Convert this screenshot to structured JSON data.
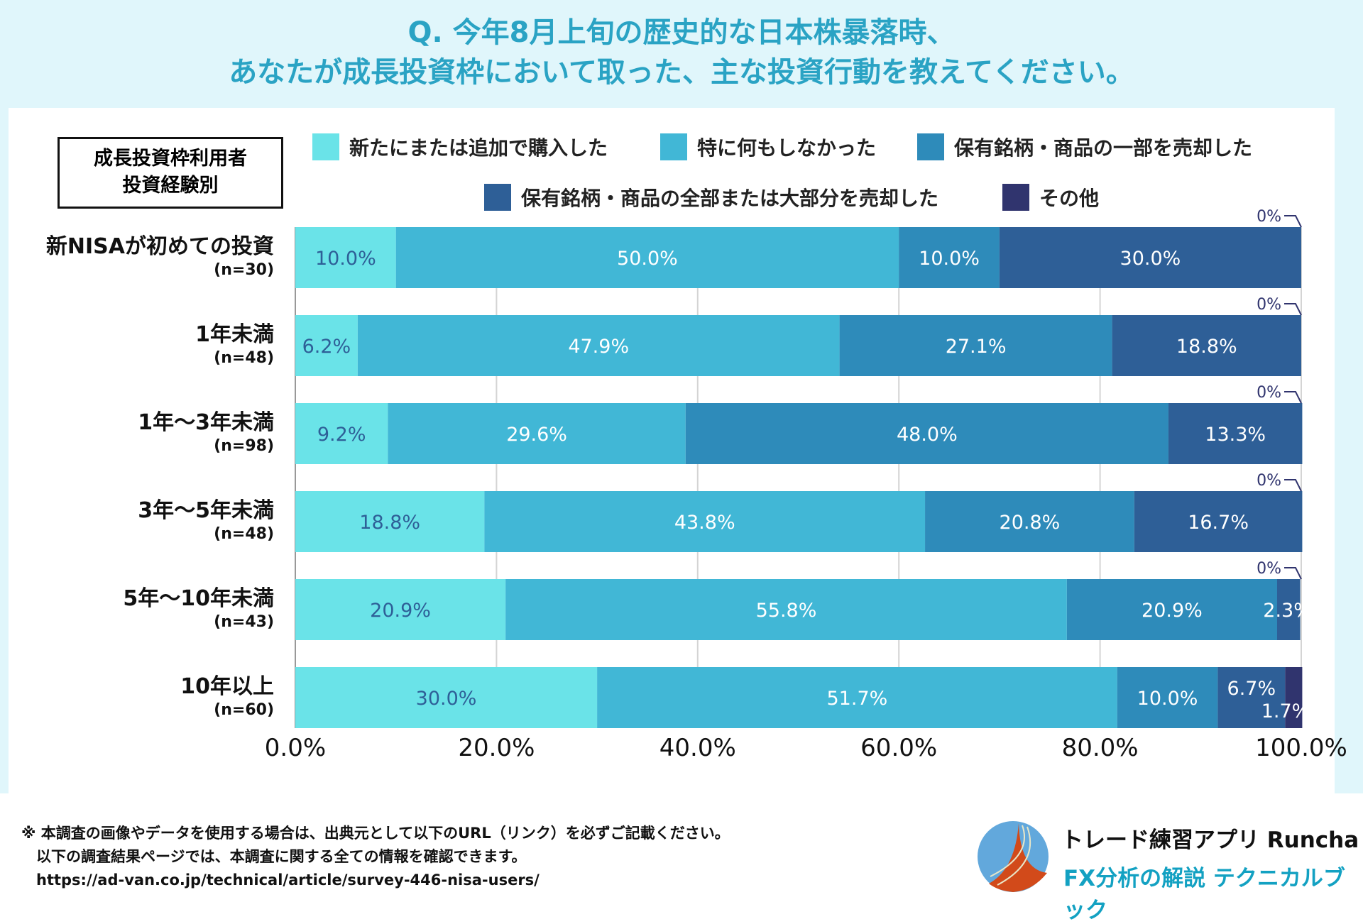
{
  "title_lines": [
    "Q. 今年8月上旬の歴史的な日本株暴落時、",
    "あなたが成長投資枠において取った、主な投資行動を教えてください。"
  ],
  "group_box": [
    "成長投資枠利用者",
    "投資経験別"
  ],
  "chart_data": {
    "type": "bar",
    "orientation": "horizontal-stacked-100",
    "categories": [
      {
        "label": "新NISAが初めての投資",
        "n": "(n=30)"
      },
      {
        "label": "1年未満",
        "n": "(n=48)"
      },
      {
        "label": "1年〜3年未満",
        "n": "(n=98)"
      },
      {
        "label": "3年〜5年未満",
        "n": "(n=48)"
      },
      {
        "label": "5年〜10年未満",
        "n": "(n=43)"
      },
      {
        "label": "10年以上",
        "n": "(n=60)"
      }
    ],
    "series": [
      {
        "name": "新たにまたは追加で購入した",
        "color": "#6ae3e8",
        "values": [
          10.0,
          6.2,
          9.2,
          18.8,
          20.9,
          30.0
        ]
      },
      {
        "name": "特に何もしなかった",
        "color": "#41b7d6",
        "values": [
          50.0,
          47.9,
          29.6,
          43.8,
          55.8,
          51.7
        ]
      },
      {
        "name": "保有銘柄・商品の一部を売却した",
        "color": "#2e8bba",
        "values": [
          10.0,
          27.1,
          48.0,
          20.8,
          20.9,
          10.0
        ]
      },
      {
        "name": "保有銘柄・商品の全部または大部分を売却した",
        "color": "#2e5f97",
        "values": [
          30.0,
          18.8,
          13.3,
          16.7,
          2.3,
          6.7
        ]
      },
      {
        "name": "その他",
        "color": "#30346e",
        "values": [
          0,
          0,
          0,
          0,
          0,
          1.7
        ]
      }
    ],
    "zero_label": "0%",
    "xlim": [
      0,
      100
    ],
    "xticks": [
      "0.0%",
      "20.0%",
      "40.0%",
      "60.0%",
      "80.0%",
      "100.0%"
    ],
    "grid": true,
    "legend": "top"
  },
  "footer": {
    "lines": [
      "※ 本調査の画像やデータを使用する場合は、出典元として以下のURL（リンク）を必ずご記載ください。",
      "　以下の調査結果ページでは、本調査に関する全ての情報を確認できます。",
      "　https://ad-van.co.jp/technical/article/survey-446-nisa-users/"
    ],
    "brand_line1": "トレード練習アプリ  Runcha",
    "brand_line2": "FX分析の解説  テクニカルブック"
  }
}
